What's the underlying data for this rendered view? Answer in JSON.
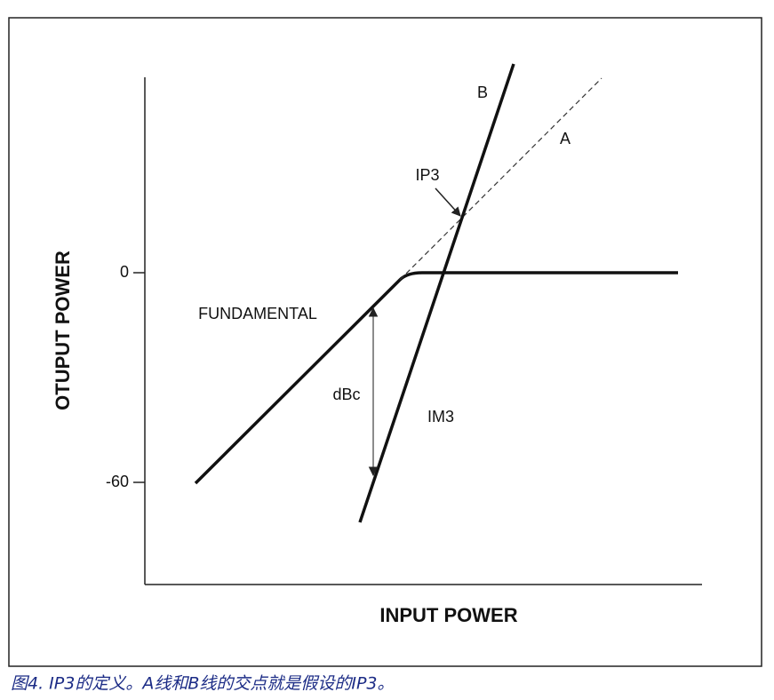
{
  "axes": {
    "y_label": "OTUPUT POWER",
    "x_label": "INPUT POWER",
    "y_ticks": [
      "0",
      "-60"
    ]
  },
  "labels": {
    "b": "B",
    "a": "A",
    "ip3": "IP3",
    "fundamental": "FUNDAMENTAL",
    "dbc": "dBc",
    "im3": "IM3"
  },
  "caption": "图4. IP3的定义。A线和B线的交点就是假设的IP3。"
}
